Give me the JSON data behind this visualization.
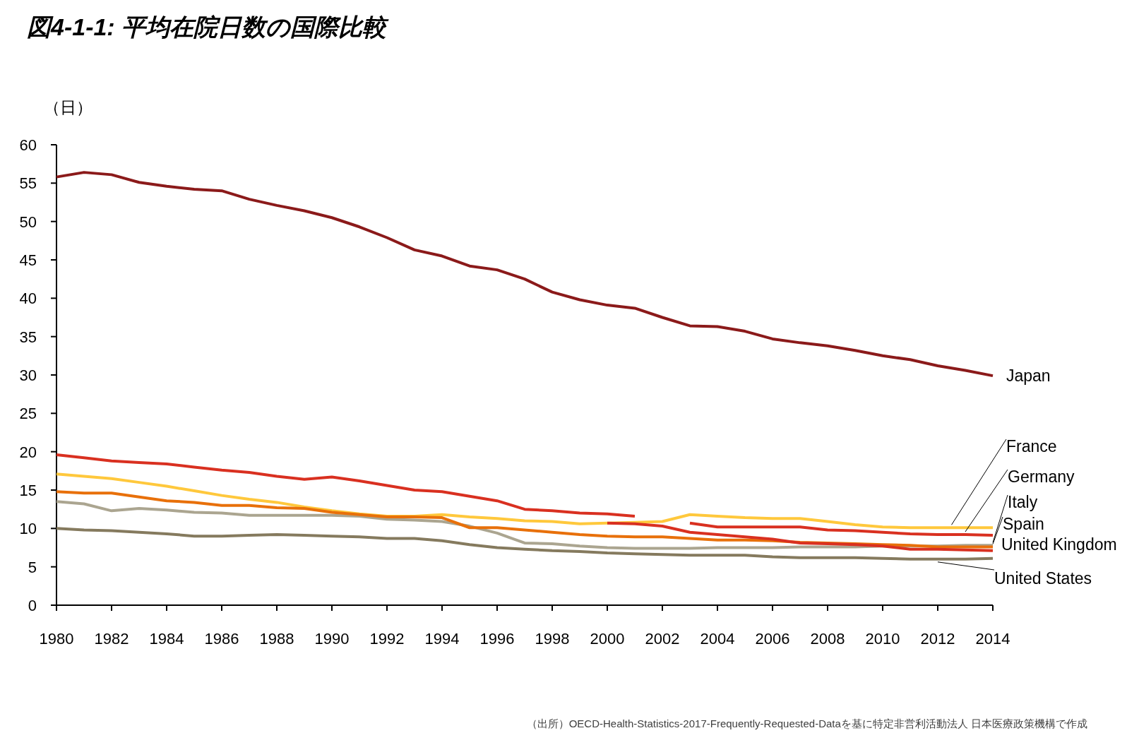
{
  "chart_data": {
    "type": "line",
    "title": "図4-1-1: 平均在院日数の国際比較",
    "ylabel": "（日）",
    "x": [
      1980,
      1981,
      1982,
      1983,
      1984,
      1985,
      1986,
      1987,
      1988,
      1989,
      1990,
      1991,
      1992,
      1993,
      1994,
      1995,
      1996,
      1997,
      1998,
      1999,
      2000,
      2001,
      2002,
      2003,
      2004,
      2005,
      2006,
      2007,
      2008,
      2009,
      2010,
      2011,
      2012,
      2013,
      2014
    ],
    "xlim": [
      1980,
      2014
    ],
    "xticks": [
      1980,
      1982,
      1984,
      1986,
      1988,
      1990,
      1992,
      1994,
      1996,
      1998,
      2000,
      2002,
      2004,
      2006,
      2008,
      2010,
      2012,
      2014
    ],
    "ylim": [
      0,
      60
    ],
    "yticks": [
      0,
      5,
      10,
      15,
      20,
      25,
      30,
      35,
      40,
      45,
      50,
      55,
      60
    ],
    "grid": false,
    "legend": false,
    "marker": "none",
    "line_style": "solid",
    "series": [
      {
        "name": "Japan",
        "color": "#8b1a1a",
        "values": [
          55.8,
          56.4,
          56.1,
          55.1,
          54.6,
          54.2,
          54.0,
          52.9,
          52.1,
          51.4,
          50.5,
          49.3,
          47.9,
          46.3,
          45.5,
          44.2,
          43.7,
          42.5,
          40.8,
          39.8,
          39.1,
          38.7,
          37.5,
          36.4,
          36.3,
          35.7,
          34.7,
          34.2,
          33.8,
          33.2,
          32.5,
          32.0,
          31.2,
          30.6,
          29.9
        ]
      },
      {
        "name": "France",
        "color": "#ffc83c",
        "values": [
          17.1,
          16.8,
          16.5,
          16.0,
          15.5,
          14.9,
          14.3,
          13.8,
          13.4,
          12.8,
          12.3,
          11.9,
          11.6,
          11.6,
          11.8,
          11.5,
          11.3,
          11.0,
          10.9,
          10.6,
          10.7,
          10.8,
          10.9,
          11.8,
          11.6,
          11.4,
          11.3,
          11.3,
          10.9,
          10.5,
          10.2,
          10.1,
          10.1,
          10.1,
          10.1
        ]
      },
      {
        "name": "Germany",
        "color": "#d93020",
        "values": [
          19.6,
          19.2,
          18.8,
          18.6,
          18.4,
          18.0,
          17.6,
          17.3,
          16.8,
          16.4,
          16.7,
          16.2,
          15.6,
          15.0,
          14.8,
          14.2,
          13.6,
          12.5,
          12.3,
          12.0,
          11.9,
          11.6,
          null,
          10.7,
          10.2,
          10.2,
          10.2,
          10.2,
          9.8,
          9.7,
          9.5,
          9.3,
          9.2,
          9.2,
          9.1
        ]
      },
      {
        "name": "Italy",
        "color": "#aba590",
        "values": [
          13.5,
          13.2,
          12.3,
          12.6,
          12.4,
          12.1,
          12.0,
          11.7,
          11.7,
          11.7,
          11.7,
          11.6,
          11.2,
          11.1,
          10.9,
          10.3,
          9.4,
          8.1,
          8.0,
          7.7,
          7.5,
          7.4,
          7.4,
          7.4,
          7.5,
          7.5,
          7.5,
          7.6,
          7.6,
          7.6,
          7.7,
          7.7,
          7.7,
          7.8,
          7.8
        ]
      },
      {
        "name": "Spain",
        "color": "#e8700a",
        "values": [
          14.8,
          14.6,
          14.6,
          14.1,
          13.6,
          13.4,
          13.0,
          13.0,
          12.7,
          12.6,
          12.1,
          11.8,
          11.5,
          11.5,
          11.4,
          10.1,
          10.1,
          9.8,
          9.5,
          9.2,
          9.0,
          8.9,
          8.9,
          8.7,
          8.5,
          8.5,
          8.4,
          8.2,
          8.1,
          8.0,
          7.9,
          7.8,
          7.6,
          7.6,
          7.6
        ]
      },
      {
        "name": "United Kingdom",
        "color": "#d93020",
        "values": [
          null,
          null,
          null,
          null,
          null,
          null,
          null,
          null,
          null,
          null,
          null,
          null,
          null,
          null,
          null,
          null,
          null,
          null,
          null,
          null,
          10.7,
          10.6,
          10.3,
          9.5,
          9.2,
          8.9,
          8.6,
          8.1,
          8.0,
          7.9,
          7.7,
          7.3,
          7.3,
          7.2,
          7.1
        ]
      },
      {
        "name": "United States",
        "color": "#857a5e",
        "values": [
          10.0,
          9.8,
          9.7,
          9.5,
          9.3,
          9.0,
          9.0,
          9.1,
          9.2,
          9.1,
          9.0,
          8.9,
          8.7,
          8.7,
          8.4,
          7.9,
          7.5,
          7.3,
          7.1,
          7.0,
          6.8,
          6.7,
          6.6,
          6.5,
          6.5,
          6.5,
          6.3,
          6.2,
          6.2,
          6.2,
          6.1,
          6.0,
          6.0,
          6.0,
          6.1
        ]
      }
    ],
    "annotations": [
      "（出所）OECD-Health-Statistics-2017-Frequently-Requested-Dataを基に特定非営利活動法人 日本医療政策機構で作成"
    ]
  }
}
